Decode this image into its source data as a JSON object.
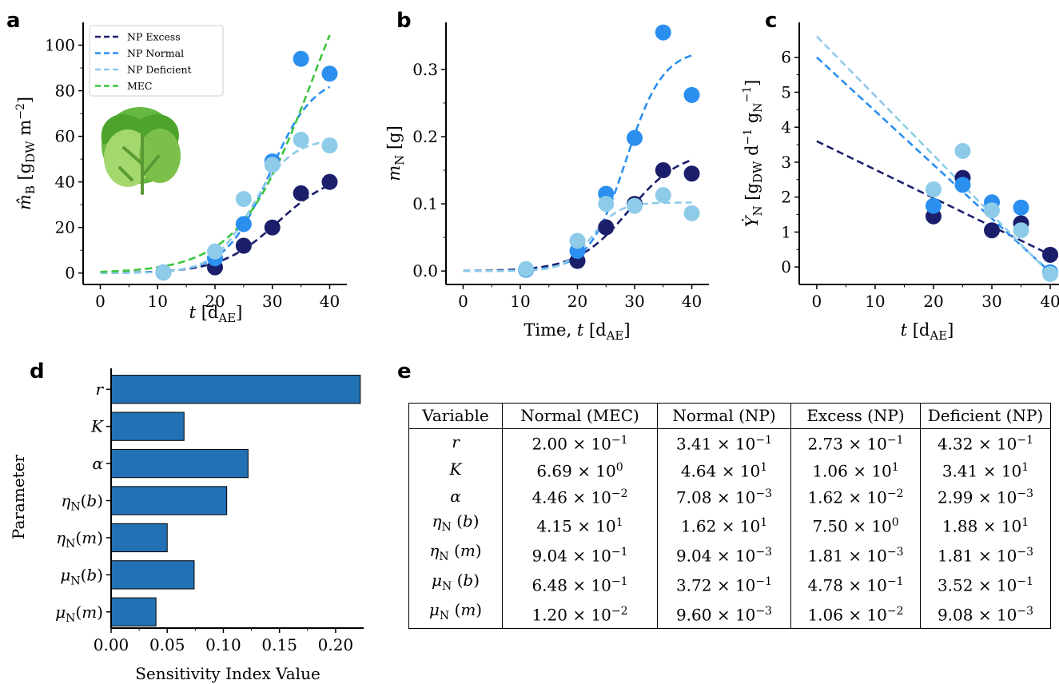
{
  "panels": {
    "a": "a",
    "b": "b",
    "c": "c",
    "d": "d",
    "e": "e"
  },
  "colors": {
    "excess": "#1b1f6b",
    "normal": "#2b8ff0",
    "deficient": "#8ecbe9",
    "mec": "#3cc43c",
    "bar": "#2271b5"
  },
  "chart_data": [
    {
      "panel": "a",
      "type": "line",
      "xlabel": "t [d_AE]",
      "ylabel": "m̂_B [g_DW m^-2]",
      "xlim": [
        -3,
        43
      ],
      "ylim": [
        -5,
        110
      ],
      "xticks": [
        0,
        10,
        20,
        30,
        40
      ],
      "yticks": [
        0,
        20,
        40,
        60,
        80,
        100
      ],
      "legend_position": "top-left",
      "icon": "lettuce-icon",
      "series": [
        {
          "name": "NP Excess",
          "color": "#1b1f6b",
          "points": [
            [
              11,
              0.3
            ],
            [
              20,
              2.5
            ],
            [
              25,
              12
            ],
            [
              30,
              20
            ],
            [
              35,
              35
            ],
            [
              40,
              40
            ]
          ],
          "curve": {
            "K": 45,
            "r": 0.2,
            "t0": 31
          }
        },
        {
          "name": "NP Normal",
          "color": "#2b8ff0",
          "points": [
            [
              11,
              0.3
            ],
            [
              20,
              6.5
            ],
            [
              25,
              21.5
            ],
            [
              30,
              49
            ],
            [
              35,
              94
            ],
            [
              40,
              87.5
            ]
          ],
          "curve": {
            "K": 87,
            "r": 0.26,
            "t0": 29.5
          }
        },
        {
          "name": "NP Deficient",
          "color": "#8ecbe9",
          "points": [
            [
              11,
              0.3
            ],
            [
              20,
              9.5
            ],
            [
              25,
              32.5
            ],
            [
              30,
              47.5
            ],
            [
              35,
              58.5
            ],
            [
              40,
              56
            ]
          ],
          "curve": {
            "K": 59,
            "r": 0.29,
            "t0": 26.5
          }
        },
        {
          "name": "MEC",
          "color": "#3cc43c",
          "points": [],
          "curve": {
            "K": 170,
            "r": 0.155,
            "t0": 37
          }
        }
      ]
    },
    {
      "panel": "b",
      "type": "line",
      "xlabel": "Time, t [d_AE]",
      "ylabel": "m_N [g]",
      "xlim": [
        -3,
        43
      ],
      "ylim": [
        -0.02,
        0.37
      ],
      "xticks": [
        0,
        10,
        20,
        30,
        40
      ],
      "yticks": [
        0.0,
        0.1,
        0.2,
        0.3
      ],
      "series": [
        {
          "name": "NP Excess",
          "color": "#1b1f6b",
          "points": [
            [
              11,
              0.002
            ],
            [
              20,
              0.015
            ],
            [
              25,
              0.065
            ],
            [
              30,
              0.1
            ],
            [
              35,
              0.15
            ],
            [
              40,
              0.145
            ]
          ],
          "curve": {
            "K": 0.18,
            "r": 0.22,
            "t0": 29
          }
        },
        {
          "name": "NP Normal",
          "color": "#2b8ff0",
          "points": [
            [
              11,
              0.002
            ],
            [
              20,
              0.03
            ],
            [
              25,
              0.115
            ],
            [
              30,
              0.198
            ],
            [
              35,
              0.355
            ],
            [
              40,
              0.262
            ]
          ],
          "curve": {
            "K": 0.33,
            "r": 0.31,
            "t0": 28.5
          }
        },
        {
          "name": "NP Deficient",
          "color": "#8ecbe9",
          "points": [
            [
              11,
              0.003
            ],
            [
              20,
              0.045
            ],
            [
              25,
              0.1
            ],
            [
              30,
              0.097
            ],
            [
              35,
              0.113
            ],
            [
              40,
              0.086
            ]
          ],
          "curve": {
            "K": 0.102,
            "r": 0.42,
            "t0": 22.5
          }
        }
      ]
    },
    {
      "panel": "c",
      "type": "line",
      "xlabel": "t [d_AE]",
      "ylabel": "Ẏ_N [g_DW d^-1 g_N^-1]",
      "xlim": [
        -3,
        41.5
      ],
      "ylim": [
        -0.5,
        7
      ],
      "xticks": [
        0,
        10,
        20,
        30,
        40
      ],
      "yticks": [
        0,
        1,
        2,
        3,
        4,
        5,
        6
      ],
      "series": [
        {
          "name": "NP Excess",
          "color": "#1b1f6b",
          "points": [
            [
              20,
              1.45
            ],
            [
              25,
              2.55
            ],
            [
              30,
              1.05
            ],
            [
              35,
              1.25
            ],
            [
              40,
              0.35
            ]
          ],
          "line": [
            [
              0,
              3.6
            ],
            [
              40,
              0.35
            ]
          ]
        },
        {
          "name": "NP Normal",
          "color": "#2b8ff0",
          "points": [
            [
              20,
              1.75
            ],
            [
              25,
              2.35
            ],
            [
              30,
              1.85
            ],
            [
              35,
              1.7
            ],
            [
              40,
              -0.15
            ]
          ],
          "line": [
            [
              0,
              6.0
            ],
            [
              40,
              -0.15
            ]
          ]
        },
        {
          "name": "NP Deficient",
          "color": "#8ecbe9",
          "points": [
            [
              20,
              2.22
            ],
            [
              25,
              3.32
            ],
            [
              30,
              1.62
            ],
            [
              35,
              1.05
            ],
            [
              40,
              -0.2
            ]
          ],
          "line": [
            [
              0,
              6.6
            ],
            [
              40,
              -0.2
            ]
          ]
        }
      ]
    },
    {
      "panel": "d",
      "type": "bar",
      "orientation": "horizontal",
      "xlabel": "Sensitivity Index Value",
      "ylabel": "Parameter",
      "xlim": [
        0,
        0.225
      ],
      "xticks": [
        0.0,
        0.05,
        0.1,
        0.15,
        0.2
      ],
      "xtick_labels": [
        "0.00",
        "0.05",
        "0.10",
        "0.15",
        "0.20"
      ],
      "categories": [
        "r",
        "K",
        "α",
        "η_N(b)",
        "η_N(m)",
        "μ_N(b)",
        "μ_N(m)"
      ],
      "values": [
        0.222,
        0.065,
        0.122,
        0.103,
        0.05,
        0.074,
        0.04
      ]
    }
  ],
  "table": {
    "headers": [
      "Variable",
      "Normal (MEC)",
      "Normal (NP)",
      "Excess (NP)",
      "Deficient (NP)"
    ],
    "rows": [
      {
        "var": "r",
        "sub": "",
        "arg": "",
        "vals": [
          [
            "2.00",
            "-1"
          ],
          [
            "3.41",
            "-1"
          ],
          [
            "2.73",
            "-1"
          ],
          [
            "4.32",
            "-1"
          ]
        ]
      },
      {
        "var": "K",
        "sub": "",
        "arg": "",
        "vals": [
          [
            "6.69",
            "0"
          ],
          [
            "4.64",
            "1"
          ],
          [
            "1.06",
            "1"
          ],
          [
            "3.41",
            "1"
          ]
        ]
      },
      {
        "var": "α",
        "sub": "",
        "arg": "",
        "vals": [
          [
            "4.46",
            "-2"
          ],
          [
            "7.08",
            "-3"
          ],
          [
            "1.62",
            "-2"
          ],
          [
            "2.99",
            "-3"
          ]
        ]
      },
      {
        "var": "η",
        "sub": "N",
        "arg": "b",
        "vals": [
          [
            "4.15",
            "1"
          ],
          [
            "1.62",
            "1"
          ],
          [
            "7.50",
            "0"
          ],
          [
            "1.88",
            "1"
          ]
        ]
      },
      {
        "var": "η",
        "sub": "N",
        "arg": "m",
        "vals": [
          [
            "9.04",
            "-1"
          ],
          [
            "9.04",
            "-3"
          ],
          [
            "1.81",
            "-3"
          ],
          [
            "1.81",
            "-3"
          ]
        ]
      },
      {
        "var": "μ",
        "sub": "N",
        "arg": "b",
        "vals": [
          [
            "6.48",
            "-1"
          ],
          [
            "3.72",
            "-1"
          ],
          [
            "4.78",
            "-1"
          ],
          [
            "3.52",
            "-1"
          ]
        ]
      },
      {
        "var": "μ",
        "sub": "N",
        "arg": "m",
        "vals": [
          [
            "1.20",
            "-2"
          ],
          [
            "9.60",
            "-3"
          ],
          [
            "1.06",
            "-2"
          ],
          [
            "9.08",
            "-3"
          ]
        ]
      }
    ]
  }
}
